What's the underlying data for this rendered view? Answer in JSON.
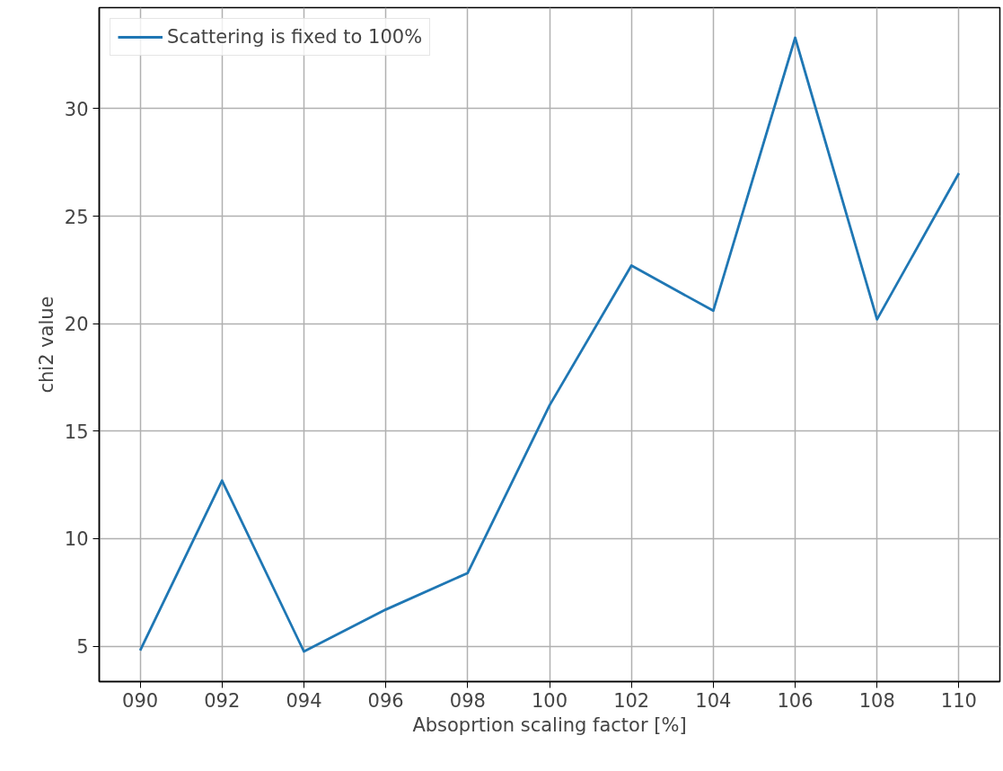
{
  "chart_data": {
    "type": "line",
    "xlabel": "Absoprtion scaling factor [%]",
    "ylabel": "chi2 value",
    "categories": [
      "090",
      "092",
      "094",
      "096",
      "098",
      "100",
      "102",
      "104",
      "106",
      "108",
      "110"
    ],
    "series": [
      {
        "name": "Scattering is fixed to 100%",
        "color": "#1f77b4",
        "values": [
          4.8,
          12.7,
          4.75,
          6.7,
          8.4,
          16.2,
          22.7,
          20.6,
          33.3,
          20.2,
          27.0
        ]
      }
    ],
    "ylim": [
      3.35,
      34.7
    ],
    "yticks": [
      5,
      10,
      15,
      20,
      25,
      30
    ],
    "grid": true,
    "legend": "top left",
    "marker": "none",
    "line_style": "solid"
  }
}
